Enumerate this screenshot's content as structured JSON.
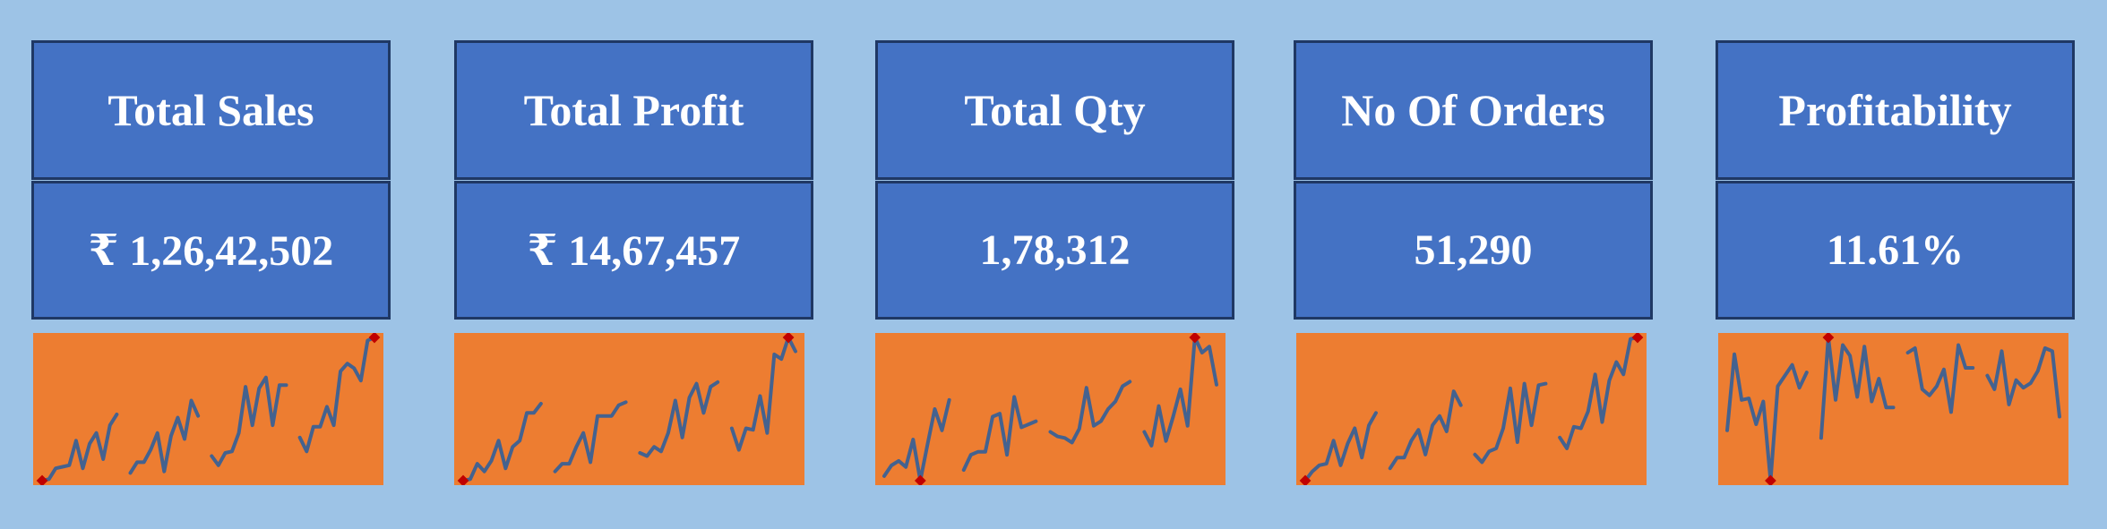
{
  "colors": {
    "background": "#9dc3e6",
    "card_fill": "#4472c4",
    "card_border": "#1f3864",
    "sparkline_bg": "#ed7d31",
    "sparkline_line": "#44628f",
    "sparkline_marker": "#c00000"
  },
  "kpis": [
    {
      "title": "Total Sales",
      "value": "₹ 1,26,42,502",
      "sparkline": [
        [
          0.04,
          0.05,
          0.12,
          0.13,
          0.14,
          0.3,
          0.12,
          0.28,
          0.35,
          0.18,
          0.4,
          0.47
        ],
        [
          0.09,
          0.16,
          0.16,
          0.24,
          0.35,
          0.1,
          0.33,
          0.45,
          0.31,
          0.56,
          0.46
        ],
        [
          0.2,
          0.14,
          0.22,
          0.23,
          0.35,
          0.65,
          0.4,
          0.64,
          0.71,
          0.4,
          0.66,
          0.66
        ],
        [
          0.32,
          0.23,
          0.39,
          0.39,
          0.52,
          0.4,
          0.75,
          0.8,
          0.77,
          0.69,
          0.95,
          0.97
        ]
      ]
    },
    {
      "title": "Total Profit",
      "value": "₹ 14,67,457",
      "sparkline": [
        [
          0.04,
          0.05,
          0.15,
          0.1,
          0.17,
          0.3,
          0.12,
          0.26,
          0.3,
          0.48,
          0.48,
          0.54
        ],
        [
          0.1,
          0.15,
          0.15,
          0.26,
          0.35,
          0.16,
          0.46,
          0.46,
          0.46,
          0.53,
          0.55
        ],
        [
          0.22,
          0.2,
          0.26,
          0.23,
          0.35,
          0.56,
          0.32,
          0.58,
          0.67,
          0.48,
          0.65,
          0.68
        ],
        [
          0.38,
          0.24,
          0.38,
          0.37,
          0.59,
          0.35,
          0.86,
          0.83,
          0.97,
          0.88
        ]
      ]
    },
    {
      "title": "Total Qty",
      "value": "1,78,312",
      "sparkline": [
        [
          0.06,
          0.13,
          0.16,
          0.12,
          0.3,
          0.03,
          0.27,
          0.5,
          0.36,
          0.56
        ],
        [
          0.1,
          0.2,
          0.22,
          0.22,
          0.45,
          0.47,
          0.2,
          0.58,
          0.38,
          0.4,
          0.42
        ],
        [
          0.35,
          0.32,
          0.31,
          0.28,
          0.37,
          0.64,
          0.39,
          0.42,
          0.5,
          0.55,
          0.65,
          0.68
        ],
        [
          0.35,
          0.26,
          0.52,
          0.29,
          0.45,
          0.63,
          0.39,
          0.97,
          0.87,
          0.91,
          0.66
        ]
      ]
    },
    {
      "title": "No Of Orders",
      "value": "51,290",
      "sparkline": [
        [
          0.04,
          0.1,
          0.14,
          0.15,
          0.3,
          0.14,
          0.28,
          0.38,
          0.19,
          0.4,
          0.48
        ],
        [
          0.12,
          0.19,
          0.19,
          0.3,
          0.37,
          0.21,
          0.4,
          0.46,
          0.36,
          0.62,
          0.53
        ],
        [
          0.21,
          0.16,
          0.23,
          0.25,
          0.38,
          0.64,
          0.29,
          0.67,
          0.4,
          0.66,
          0.67
        ],
        [
          0.32,
          0.25,
          0.39,
          0.38,
          0.49,
          0.73,
          0.42,
          0.69,
          0.81,
          0.73,
          0.96,
          0.97
        ]
      ]
    },
    {
      "title": "Profitability",
      "value": "11.61%",
      "sparkline": [
        [
          0.36,
          0.86,
          0.56,
          0.57,
          0.4,
          0.55,
          0.03,
          0.65,
          0.72,
          0.79,
          0.64,
          0.74
        ],
        [
          0.31,
          0.97,
          0.56,
          0.92,
          0.85,
          0.58,
          0.91,
          0.55,
          0.7,
          0.51,
          0.51
        ],
        [
          0.87,
          0.9,
          0.63,
          0.59,
          0.65,
          0.76,
          0.48,
          0.92,
          0.77,
          0.77
        ],
        [
          0.72,
          0.63,
          0.88,
          0.53,
          0.69,
          0.64,
          0.67,
          0.75,
          0.9,
          0.88,
          0.45
        ]
      ]
    }
  ]
}
